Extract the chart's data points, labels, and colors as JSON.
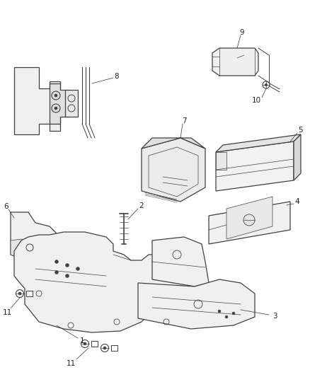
{
  "bg_color": "#ffffff",
  "line_color": "#404040",
  "label_color": "#222222",
  "fig_width": 4.38,
  "fig_height": 5.33,
  "dpi": 100
}
